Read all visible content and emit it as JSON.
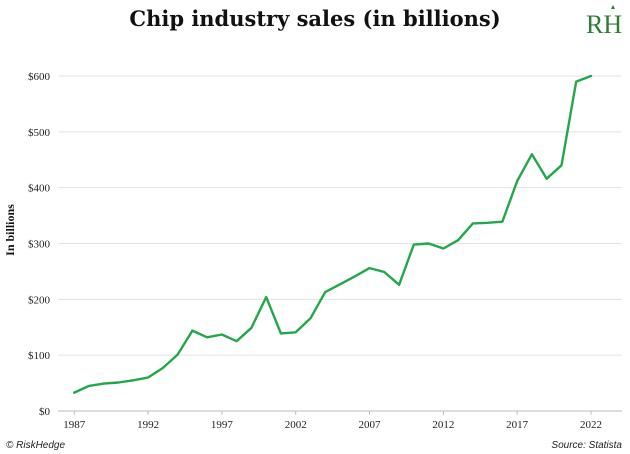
{
  "chart_data": {
    "type": "line",
    "title": "Chip industry sales (in billions)",
    "xlabel": "",
    "ylabel": "In billions",
    "xlim": [
      1987,
      2022
    ],
    "ylim": [
      0,
      600
    ],
    "x_ticks": [
      1987,
      1992,
      1997,
      2002,
      2007,
      2012,
      2017,
      2022
    ],
    "y_ticks": [
      0,
      100,
      200,
      300,
      400,
      500,
      600
    ],
    "y_tick_labels": [
      "$0",
      "$100",
      "$200",
      "$300",
      "$400",
      "$500",
      "$600"
    ],
    "grid": "horizontal",
    "series": [
      {
        "color": "#22a84a",
        "x": [
          1987,
          1988,
          1989,
          1990,
          1991,
          1992,
          1993,
          1994,
          1995,
          1996,
          1997,
          1998,
          1999,
          2000,
          2001,
          2002,
          2003,
          2004,
          2005,
          2006,
          2007,
          2008,
          2009,
          2010,
          2011,
          2012,
          2013,
          2014,
          2015,
          2016,
          2017,
          2018,
          2019,
          2020,
          2021,
          2022
        ],
        "values": [
          33,
          45,
          49,
          51,
          55,
          60,
          77,
          101,
          144,
          132,
          137,
          125,
          149,
          204,
          139,
          141,
          166,
          213,
          227,
          241,
          256,
          249,
          226,
          298,
          300,
          291,
          306,
          336,
          337,
          339,
          412,
          460,
          416,
          440,
          590,
          600
        ]
      }
    ]
  },
  "footer": {
    "credit": "© RiskHedge",
    "source": "Source: Statista"
  },
  "logo": {
    "text": "RH",
    "color": "#2e7d32"
  }
}
